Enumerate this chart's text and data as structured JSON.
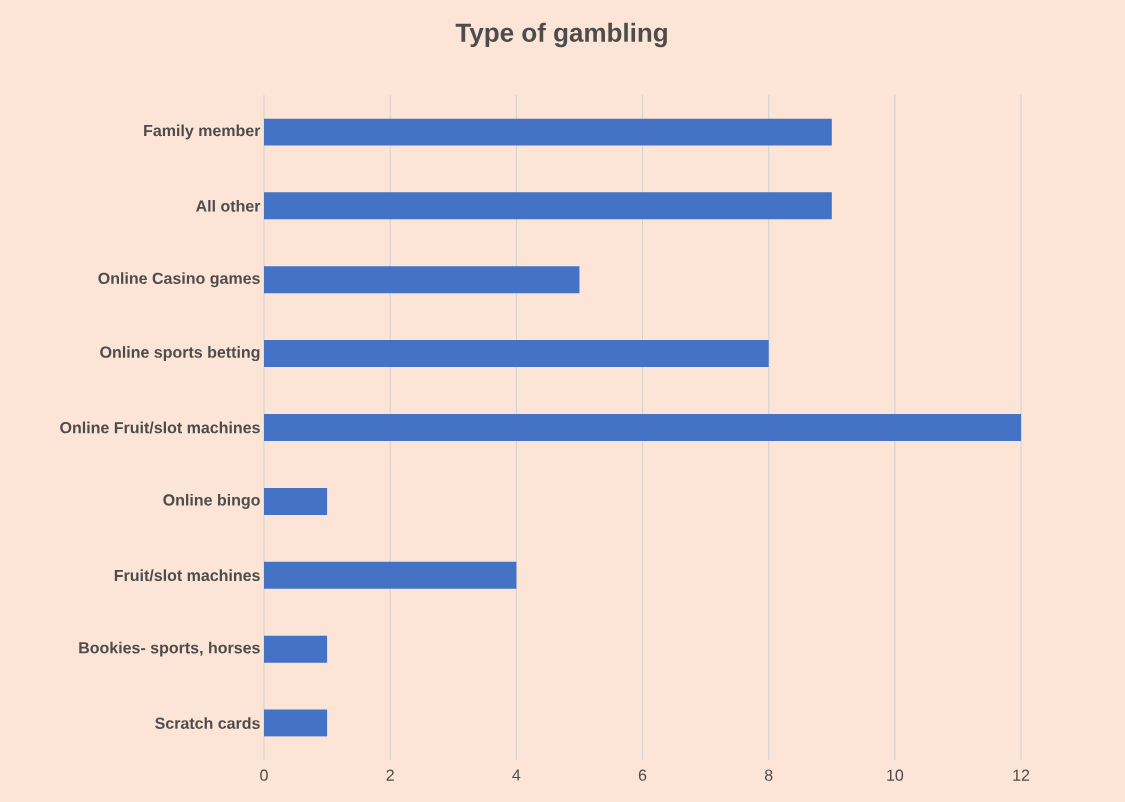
{
  "chart_data": {
    "type": "bar",
    "orientation": "horizontal",
    "title": "Type of gambling",
    "categories": [
      "Family member",
      "All other",
      "Online Casino games",
      "Online sports betting",
      "Online Fruit/slot machines",
      "Online bingo",
      "Fruit/slot machines",
      "Bookies- sports, horses",
      "Scratch cards"
    ],
    "values": [
      9,
      9,
      5,
      8,
      12,
      1,
      4,
      1,
      1
    ],
    "color": "#4472c4",
    "xlim": [
      0,
      13.6
    ],
    "xticks": [
      0,
      2,
      4,
      6,
      8,
      10,
      12
    ],
    "grid": "x"
  }
}
